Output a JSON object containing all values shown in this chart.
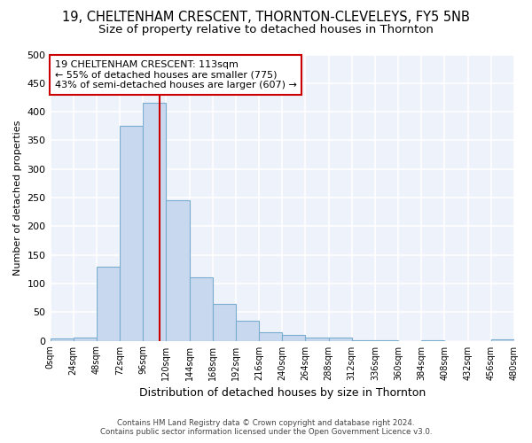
{
  "title": "19, CHELTENHAM CRESCENT, THORNTON-CLEVELEYS, FY5 5NB",
  "subtitle": "Size of property relative to detached houses in Thornton",
  "xlabel": "Distribution of detached houses by size in Thornton",
  "ylabel": "Number of detached properties",
  "footer_line1": "Contains HM Land Registry data © Crown copyright and database right 2024.",
  "footer_line2": "Contains public sector information licensed under the Open Government Licence v3.0.",
  "bin_edges": [
    0,
    24,
    48,
    72,
    96,
    120,
    144,
    168,
    192,
    216,
    240,
    264,
    288,
    312,
    336,
    360,
    384,
    408,
    432,
    456,
    480
  ],
  "bar_heights": [
    4,
    5,
    130,
    375,
    415,
    245,
    110,
    65,
    35,
    15,
    10,
    5,
    6,
    1,
    1,
    0,
    1,
    0,
    0,
    3
  ],
  "bar_color": "#c8d8ee",
  "bar_edge_color": "#7aaed0",
  "property_size": 113,
  "vline_color": "#cc0000",
  "annotation_text": "19 CHELTENHAM CRESCENT: 113sqm\n← 55% of detached houses are smaller (775)\n43% of semi-detached houses are larger (607) →",
  "annotation_box_color": "#ffffff",
  "annotation_box_edge": "#cc0000",
  "ylim": [
    0,
    500
  ],
  "background_color": "#ffffff",
  "plot_bg_color": "#eef2fa",
  "grid_color": "#ffffff",
  "title_fontsize": 10.5,
  "subtitle_fontsize": 9.5,
  "ytick_labels": [
    0,
    50,
    100,
    150,
    200,
    250,
    300,
    350,
    400,
    450,
    500
  ]
}
